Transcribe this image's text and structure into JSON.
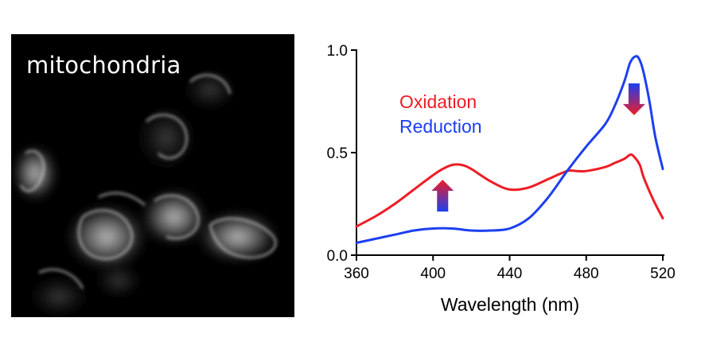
{
  "micrograph": {
    "label": "mitochondria"
  },
  "chart_data": {
    "type": "line",
    "title": "",
    "xlabel": "Wavelength (nm)",
    "ylabel": "",
    "xlim": [
      360,
      520
    ],
    "ylim": [
      0,
      1.0
    ],
    "x_ticks": [
      "360",
      "400",
      "440",
      "480",
      "520"
    ],
    "y_ticks": [
      "0.0",
      "0.5",
      "1.0"
    ],
    "grid": false,
    "legend_position": "top-left (inside plot)",
    "series": [
      {
        "name": "Oxidation",
        "color": "#ee1c25",
        "x": [
          360,
          370,
          380,
          390,
          400,
          405,
          410,
          415,
          420,
          430,
          440,
          450,
          460,
          470,
          475,
          480,
          490,
          495,
          500,
          503,
          505,
          508,
          510,
          515,
          520
        ],
        "y": [
          0.14,
          0.19,
          0.25,
          0.32,
          0.39,
          0.42,
          0.44,
          0.44,
          0.42,
          0.36,
          0.32,
          0.33,
          0.37,
          0.41,
          0.41,
          0.41,
          0.43,
          0.45,
          0.47,
          0.49,
          0.48,
          0.44,
          0.38,
          0.27,
          0.18
        ]
      },
      {
        "name": "Reduction",
        "color": "#1c3ff0",
        "x": [
          360,
          370,
          380,
          390,
          400,
          410,
          420,
          430,
          440,
          450,
          460,
          470,
          480,
          490,
          495,
          500,
          503,
          506,
          508,
          510,
          513,
          516,
          520
        ],
        "y": [
          0.06,
          0.08,
          0.1,
          0.12,
          0.13,
          0.13,
          0.12,
          0.12,
          0.13,
          0.18,
          0.28,
          0.41,
          0.53,
          0.64,
          0.73,
          0.85,
          0.94,
          0.97,
          0.95,
          0.89,
          0.75,
          0.58,
          0.42
        ]
      }
    ],
    "annotations": [
      {
        "type": "arrow",
        "direction": "up",
        "x": 405,
        "y": 0.29,
        "meaning": "Oxidation increases"
      },
      {
        "type": "arrow",
        "direction": "down",
        "x": 505,
        "y": 0.76,
        "meaning": "Oxidation decreases"
      }
    ]
  }
}
